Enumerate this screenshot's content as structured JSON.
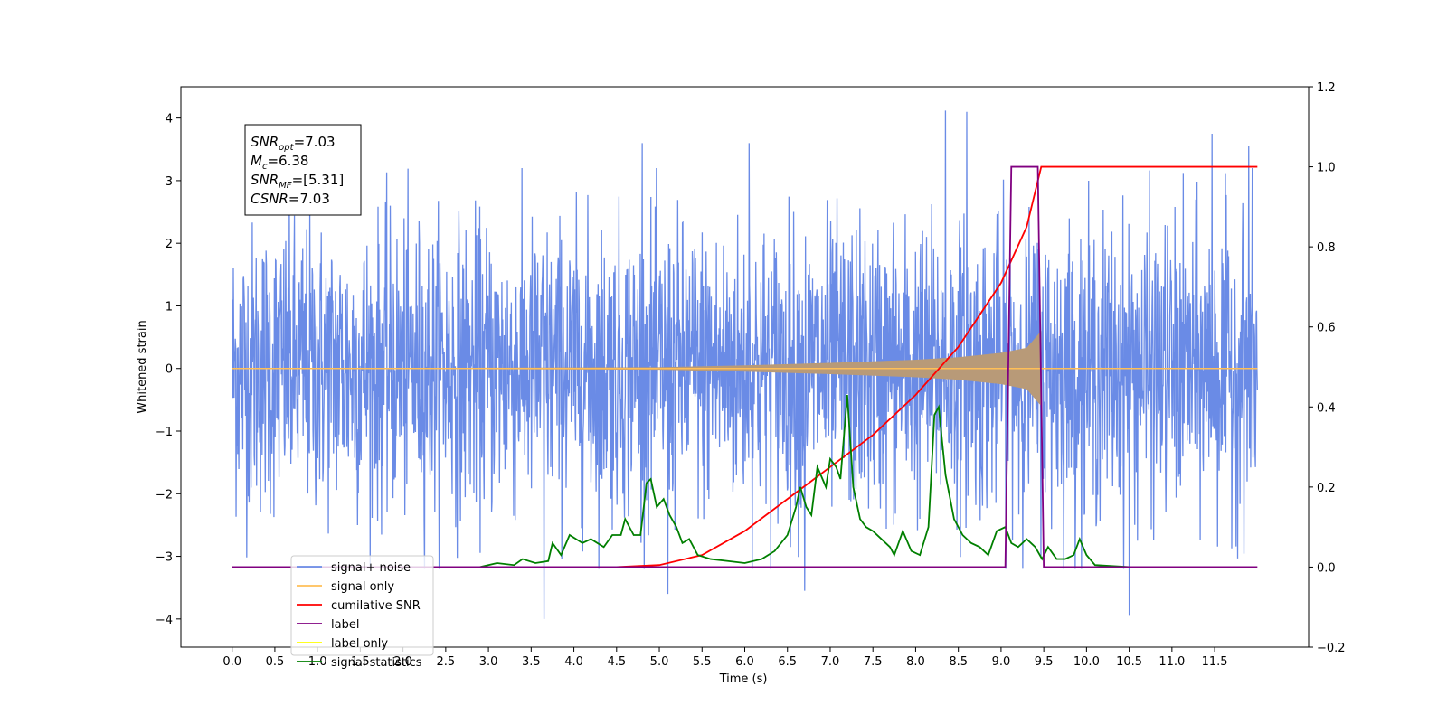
{
  "chart_data": {
    "type": "line",
    "xlabel": "Time (s)",
    "ylabel": "Whitened strain",
    "xlim": [
      -0.6,
      12.6
    ],
    "ylim": [
      -4.45,
      4.5
    ],
    "ylim_right": [
      -0.2,
      1.2
    ],
    "xticks": [
      0.0,
      0.5,
      1.0,
      1.5,
      2.0,
      2.5,
      3.0,
      3.5,
      4.0,
      4.5,
      5.0,
      5.5,
      6.0,
      6.5,
      7.0,
      7.5,
      8.0,
      8.5,
      9.0,
      9.5,
      10.0,
      10.5,
      11.0,
      11.5
    ],
    "xtick_labels": [
      "0.0",
      "0.5",
      "1.0",
      "1.5",
      "2.0",
      "2.5",
      "3.0",
      "3.5",
      "4.0",
      "4.5",
      "5.0",
      "5.5",
      "6.0",
      "6.5",
      "7.0",
      "7.5",
      "8.0",
      "8.5",
      "9.0",
      "9.5",
      "10.0",
      "10.5",
      "11.0",
      "11.5"
    ],
    "yticks_left": [
      -4,
      -3,
      -2,
      -1,
      0,
      1,
      2,
      3,
      4
    ],
    "ytick_labels_left": [
      "−4",
      "−3",
      "−2",
      "−1",
      "0",
      "1",
      "2",
      "3",
      "4"
    ],
    "yticks_right": [
      -0.2,
      0.0,
      0.2,
      0.4,
      0.6,
      0.8,
      1.0,
      1.2
    ],
    "ytick_labels_right": [
      "−0.2",
      "0.0",
      "0.2",
      "0.4",
      "0.6",
      "0.8",
      "1.0",
      "1.2"
    ],
    "legend_position": "bottom-left",
    "legend": [
      {
        "label": "signal+ noise",
        "color": "#6a8be6"
      },
      {
        "label": "signal only",
        "color": "#ffbf57"
      },
      {
        "label": "cumilative SNR",
        "color": "#ff0000"
      },
      {
        "label": "label",
        "color": "#800080"
      },
      {
        "label": "label only",
        "color": "#ffff00"
      },
      {
        "label": "signal statistics",
        "color": "#007f00"
      }
    ],
    "annotation": {
      "lines": [
        {
          "base": "SNR",
          "sub": "opt",
          "rest": "=7.03"
        },
        {
          "base": "M",
          "sub": "c",
          "rest": "=6.38"
        },
        {
          "base": "SNR",
          "sub": "MF",
          "rest": "=[5.31]"
        },
        {
          "base": "CSNR",
          "sub": "",
          "rest": "=7.03"
        }
      ]
    },
    "series": [
      {
        "name": "signal+ noise",
        "axis": "left",
        "color": "#6a8be6",
        "description_values": "noise time series, t from 0.0 to 12.0 s",
        "x_range": [
          0.0,
          12.0
        ],
        "envelope_typical": 2.4,
        "peaks": [
          [
            3.65,
            -4.0
          ],
          [
            5.1,
            -3.6
          ],
          [
            6.7,
            -3.55
          ],
          [
            8.35,
            4.12
          ],
          [
            8.6,
            4.1
          ],
          [
            10.5,
            -3.95
          ],
          [
            11.47,
            3.75
          ],
          [
            11.9,
            3.55
          ],
          [
            6.05,
            3.6
          ],
          [
            4.8,
            3.6
          ]
        ]
      },
      {
        "name": "signal only",
        "axis": "left",
        "color": "#ffbf57",
        "x_range": [
          0.0,
          9.47
        ],
        "amplitude_points": [
          [
            0.0,
            0.0
          ],
          [
            5.0,
            0.02
          ],
          [
            6.0,
            0.05
          ],
          [
            7.0,
            0.09
          ],
          [
            8.0,
            0.14
          ],
          [
            8.5,
            0.18
          ],
          [
            9.0,
            0.25
          ],
          [
            9.3,
            0.33
          ],
          [
            9.47,
            0.6
          ]
        ]
      },
      {
        "name": "cumilative SNR",
        "axis": "right",
        "color": "#ff0000",
        "points": [
          [
            0.0,
            0.0
          ],
          [
            4.5,
            0.0
          ],
          [
            5.0,
            0.005
          ],
          [
            5.5,
            0.03
          ],
          [
            6.0,
            0.09
          ],
          [
            6.5,
            0.17
          ],
          [
            7.0,
            0.25
          ],
          [
            7.5,
            0.33
          ],
          [
            8.0,
            0.43
          ],
          [
            8.5,
            0.55
          ],
          [
            9.0,
            0.71
          ],
          [
            9.3,
            0.85
          ],
          [
            9.47,
            1.0
          ],
          [
            12.0,
            1.0
          ]
        ]
      },
      {
        "name": "label",
        "axis": "right",
        "color": "#800080",
        "points": [
          [
            0.0,
            0.0
          ],
          [
            9.05,
            0.0
          ],
          [
            9.12,
            1.0
          ],
          [
            9.43,
            1.0
          ],
          [
            9.5,
            0.0
          ],
          [
            12.0,
            0.0
          ]
        ]
      },
      {
        "name": "signal statistics",
        "axis": "right",
        "color": "#007f00",
        "points": [
          [
            0.0,
            0.0
          ],
          [
            2.9,
            0.0
          ],
          [
            3.1,
            0.01
          ],
          [
            3.3,
            0.005
          ],
          [
            3.4,
            0.02
          ],
          [
            3.55,
            0.01
          ],
          [
            3.7,
            0.015
          ],
          [
            3.75,
            0.06
          ],
          [
            3.85,
            0.03
          ],
          [
            3.95,
            0.08
          ],
          [
            4.1,
            0.06
          ],
          [
            4.2,
            0.07
          ],
          [
            4.35,
            0.05
          ],
          [
            4.45,
            0.08
          ],
          [
            4.55,
            0.08
          ],
          [
            4.6,
            0.12
          ],
          [
            4.7,
            0.08
          ],
          [
            4.78,
            0.08
          ],
          [
            4.85,
            0.21
          ],
          [
            4.9,
            0.22
          ],
          [
            4.97,
            0.15
          ],
          [
            5.05,
            0.17
          ],
          [
            5.12,
            0.13
          ],
          [
            5.2,
            0.1
          ],
          [
            5.27,
            0.06
          ],
          [
            5.35,
            0.07
          ],
          [
            5.45,
            0.03
          ],
          [
            5.6,
            0.02
          ],
          [
            5.8,
            0.015
          ],
          [
            6.0,
            0.01
          ],
          [
            6.2,
            0.02
          ],
          [
            6.35,
            0.04
          ],
          [
            6.5,
            0.08
          ],
          [
            6.6,
            0.15
          ],
          [
            6.65,
            0.2
          ],
          [
            6.72,
            0.15
          ],
          [
            6.78,
            0.13
          ],
          [
            6.85,
            0.25
          ],
          [
            6.95,
            0.2
          ],
          [
            7.0,
            0.27
          ],
          [
            7.07,
            0.25
          ],
          [
            7.12,
            0.22
          ],
          [
            7.2,
            0.43
          ],
          [
            7.27,
            0.2
          ],
          [
            7.35,
            0.12
          ],
          [
            7.42,
            0.1
          ],
          [
            7.5,
            0.09
          ],
          [
            7.6,
            0.07
          ],
          [
            7.7,
            0.05
          ],
          [
            7.75,
            0.03
          ],
          [
            7.85,
            0.09
          ],
          [
            7.95,
            0.04
          ],
          [
            8.05,
            0.03
          ],
          [
            8.15,
            0.1
          ],
          [
            8.22,
            0.38
          ],
          [
            8.27,
            0.4
          ],
          [
            8.35,
            0.23
          ],
          [
            8.45,
            0.12
          ],
          [
            8.55,
            0.08
          ],
          [
            8.65,
            0.06
          ],
          [
            8.75,
            0.05
          ],
          [
            8.85,
            0.03
          ],
          [
            8.95,
            0.09
          ],
          [
            9.05,
            0.1
          ],
          [
            9.12,
            0.06
          ],
          [
            9.2,
            0.05
          ],
          [
            9.3,
            0.07
          ],
          [
            9.4,
            0.05
          ],
          [
            9.48,
            0.02
          ],
          [
            9.55,
            0.05
          ],
          [
            9.65,
            0.02
          ],
          [
            9.75,
            0.02
          ],
          [
            9.85,
            0.03
          ],
          [
            9.92,
            0.07
          ],
          [
            10.0,
            0.03
          ],
          [
            10.1,
            0.005
          ],
          [
            10.5,
            0.0
          ],
          [
            11.95,
            0.0
          ]
        ]
      }
    ]
  }
}
